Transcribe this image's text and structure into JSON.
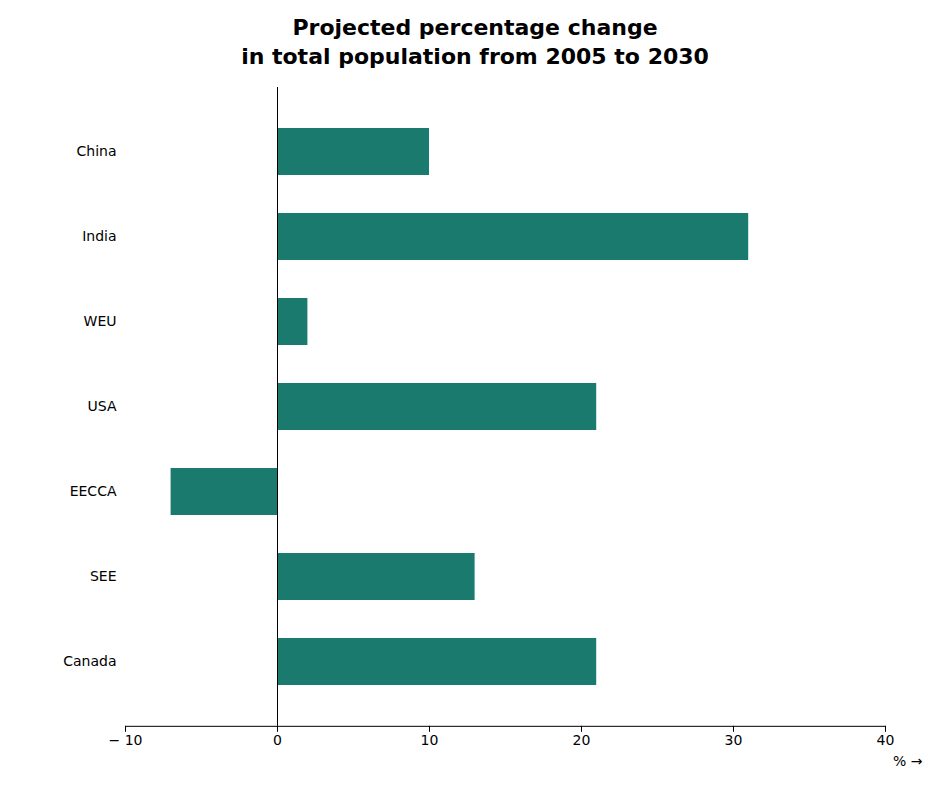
{
  "chart_data": {
    "type": "bar",
    "orientation": "horizontal",
    "title": "Projected percentage change\nin total population from 2005 to 2030",
    "categories": [
      "China",
      "India",
      "WEU",
      "USA",
      "EECCA",
      "SEE",
      "Canada"
    ],
    "values": [
      10,
      31,
      2,
      21,
      -7,
      13,
      21
    ],
    "color": "#1a7a6e",
    "xlabel": "%",
    "xlim": [
      -10,
      40
    ],
    "xticks": [
      {
        "value": -10,
        "label": "− 10"
      },
      0,
      10,
      20,
      30,
      40
    ],
    "grid": false
  }
}
